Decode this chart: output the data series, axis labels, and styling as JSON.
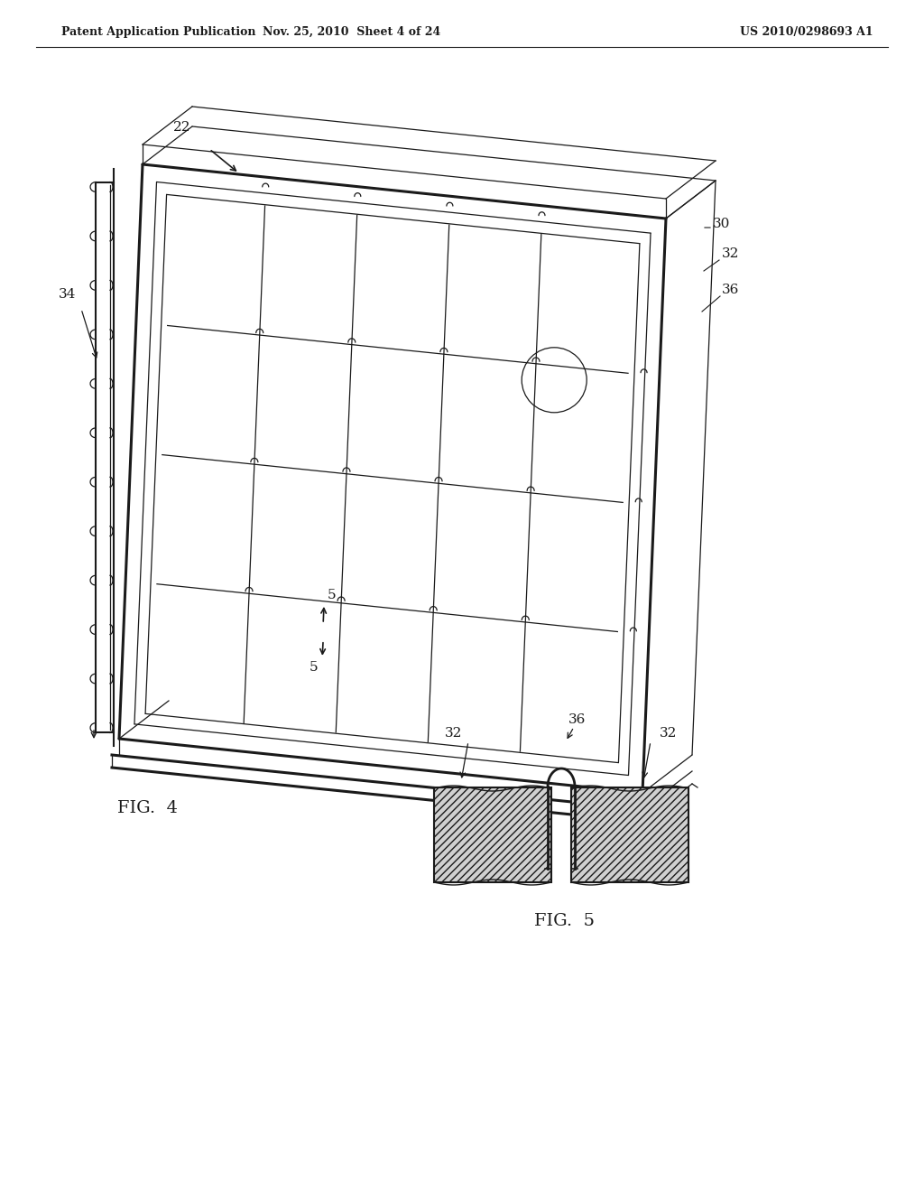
{
  "bg_color": "#ffffff",
  "line_color": "#1a1a1a",
  "header_left": "Patent Application Publication",
  "header_center": "Nov. 25, 2010  Sheet 4 of 24",
  "header_right": "US 2010/0298693 A1",
  "fig4_label": "FIG.  4",
  "fig5_label": "FIG.  5",
  "label_22": "22",
  "label_30": "30",
  "label_32": "32",
  "label_34": "34",
  "label_36": "36",
  "label_5": "5"
}
